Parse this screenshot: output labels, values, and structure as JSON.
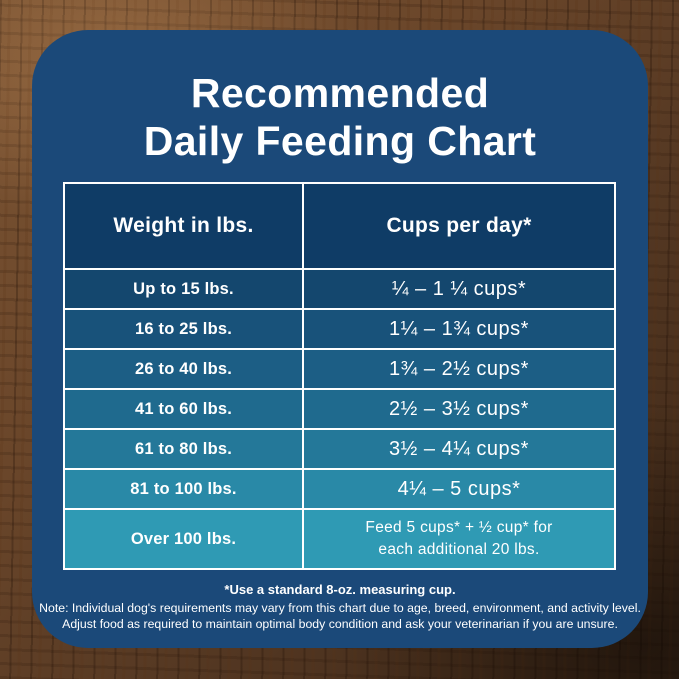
{
  "colors": {
    "panel_bg": "#1B4979",
    "header_bg": "#0F3C66",
    "table_border": "#FFFFFF",
    "text": "#FFFFFF",
    "wood_light": "#7B5433",
    "wood_dark": "#3B2616"
  },
  "title": {
    "line1": "Recommended",
    "line2": "Daily Feeding Chart"
  },
  "table": {
    "header": {
      "weight": "Weight in lbs.",
      "cups": "Cups per day*",
      "bg": "#0F3C66"
    },
    "rows": [
      {
        "weight": "Up to 15 lbs.",
        "cups": "¼ – 1 ¼ cups*",
        "bg": "#14476E"
      },
      {
        "weight": "16 to 25 lbs.",
        "cups": "1¼ – 1¾  cups*",
        "bg": "#18527A"
      },
      {
        "weight": "26 to 40 lbs.",
        "cups": "1¾ – 2½ cups*",
        "bg": "#1C5E85"
      },
      {
        "weight": "41 to 60 lbs.",
        "cups": "2½ – 3½ cups*",
        "bg": "#1F6A8E"
      },
      {
        "weight": "61 to 80 lbs.",
        "cups": "3½ – 4¼ cups*",
        "bg": "#247899"
      },
      {
        "weight": "81 to 100 lbs.",
        "cups": "4¼ – 5 cups*",
        "bg": "#2989A7"
      },
      {
        "weight": "Over 100 lbs.",
        "cups_line1": "Feed 5 cups* + ½ cup* for",
        "cups_line2": "each additional 20 lbs.",
        "bg": "#2F9AB4"
      }
    ]
  },
  "footnotes": {
    "measuring_cup": "*Use a standard 8-oz. measuring cup.",
    "note_line1": "Note: Individual dog's requirements may vary from this chart due to age, breed, environment, and activity level.",
    "note_line2": "Adjust food as required to maintain optimal body condition and ask your veterinarian if you are unsure."
  },
  "chart_data": {
    "type": "table",
    "title": "Recommended Daily Feeding Chart",
    "columns": [
      "Weight in lbs.",
      "Cups per day*"
    ],
    "rows": [
      [
        "Up to 15 lbs.",
        "¼ – 1 ¼ cups*"
      ],
      [
        "16 to 25 lbs.",
        "1¼ – 1¾ cups*"
      ],
      [
        "26 to 40 lbs.",
        "1¾ – 2½ cups*"
      ],
      [
        "41 to 60 lbs.",
        "2½ – 3½ cups*"
      ],
      [
        "61 to 80 lbs.",
        "3½ – 4¼ cups*"
      ],
      [
        "81 to 100 lbs.",
        "4¼ – 5 cups*"
      ],
      [
        "Over 100 lbs.",
        "Feed 5 cups* + ½ cup* for each additional 20 lbs."
      ]
    ],
    "footnote": "*Use a standard 8-oz. measuring cup.",
    "notes": "Note: Individual dog's requirements may vary from this chart due to age, breed, environment, and activity level. Adjust food as required to maintain optimal body condition and ask your veterinarian if you are unsure."
  }
}
